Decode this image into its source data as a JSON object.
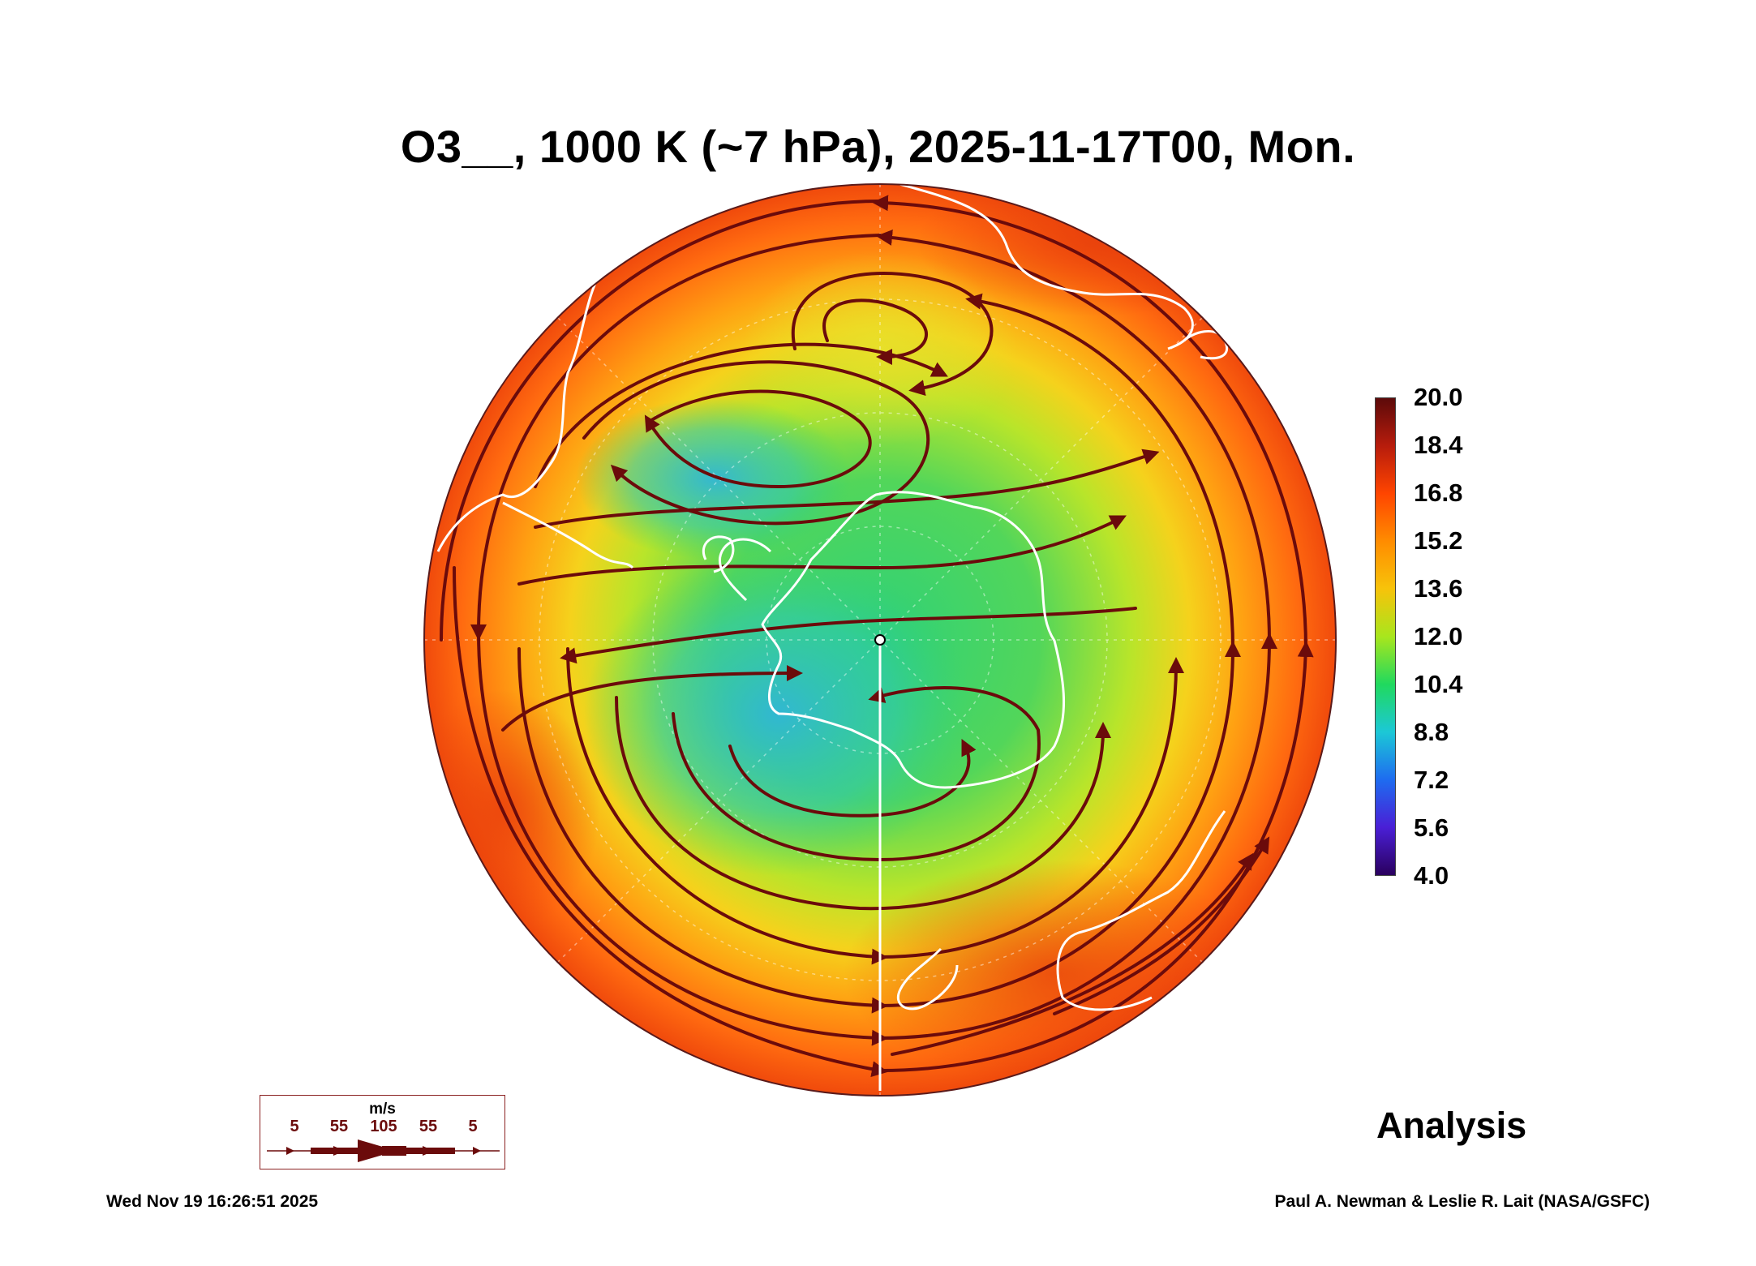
{
  "title": "O3__, 1000 K (~7 hPa), 2025-11-17T00, Mon.",
  "colorbar": {
    "ticks": [
      "20.0",
      "18.4",
      "16.8",
      "15.2",
      "13.6",
      "12.0",
      "10.4",
      "8.8",
      "7.2",
      "5.6",
      "4.0"
    ],
    "colors": [
      "#5c0a0a",
      "#b71c0c",
      "#ff4500",
      "#ff8c00",
      "#f7c30a",
      "#a8e61d",
      "#20d95e",
      "#1cc8d6",
      "#1e6cf0",
      "#4a1fd6",
      "#2a005e"
    ]
  },
  "analysis_label": "Analysis",
  "wind_legend": {
    "units": "m/s",
    "values": [
      "5",
      "55",
      "105",
      "55",
      "5"
    ]
  },
  "timestamp": "Wed Nov 19 16:26:51 2025",
  "credit": "Paul A. Newman & Leslie R. Lait (NASA/GSFC)",
  "colors": {
    "high": "#f04b10",
    "mid": "#d9e02a",
    "low": "#2fd16a",
    "min": "#3bb6e0",
    "streamline": "#6b0b0b",
    "coast": "#ffffff"
  }
}
